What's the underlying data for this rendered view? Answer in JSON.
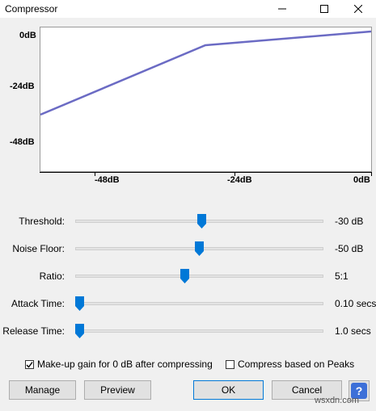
{
  "window": {
    "title": "Compressor"
  },
  "graph": {
    "y_labels": [
      "0dB",
      "-24dB",
      "-48dB"
    ],
    "x_labels": [
      "-48dB",
      "-24dB",
      "0dB"
    ],
    "line_color": "#6b6bc4"
  },
  "controls": [
    {
      "label": "Threshold:",
      "value": "-30 dB",
      "position": 0.51
    },
    {
      "label": "Noise Floor:",
      "value": "-50 dB",
      "position": 0.5
    },
    {
      "label": "Ratio:",
      "value": "5:1",
      "position": 0.44
    },
    {
      "label": "Attack Time:",
      "value": "0.10 secs",
      "position": 0.0
    },
    {
      "label": "Release Time:",
      "value": "1.0 secs",
      "position": 0.0
    }
  ],
  "options": {
    "makeup_gain": {
      "label": "Make-up gain for 0 dB after compressing",
      "checked": true
    },
    "peaks": {
      "label": "Compress based on Peaks",
      "checked": false
    }
  },
  "buttons": {
    "manage": "Manage",
    "preview": "Preview",
    "ok": "OK",
    "cancel": "Cancel"
  },
  "watermark": "wsxdn.com",
  "accent": "#0078d7"
}
